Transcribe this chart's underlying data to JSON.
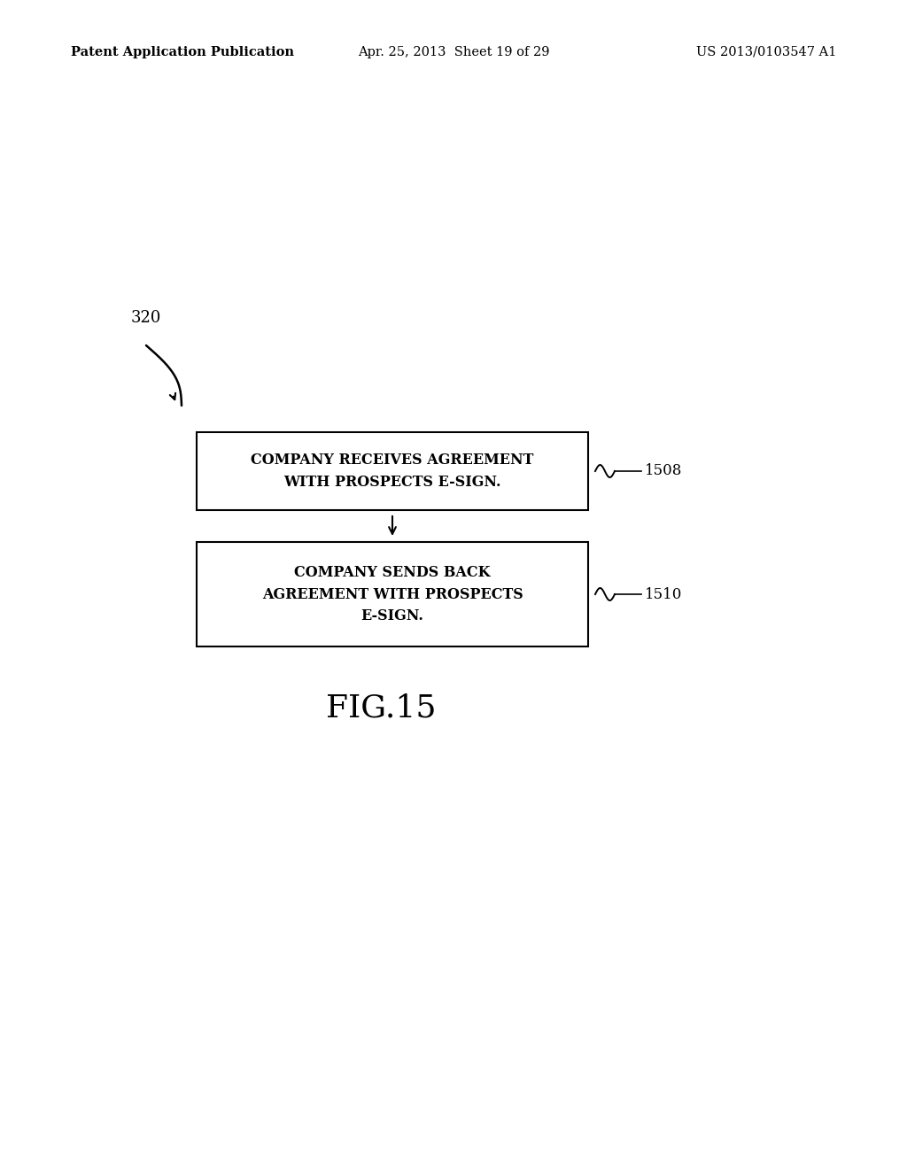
{
  "background_color": "#ffffff",
  "header_left": "Patent Application Publication",
  "header_mid": "Apr. 25, 2013  Sheet 19 of 29",
  "header_right": "US 2013/0103547 A1",
  "header_fontsize": 10.5,
  "label_320": "320",
  "box1_text_line1": "COMPANY RECEIVES AGREEMENT",
  "box1_text_line2": "WITH PROSPECTS E-SIGN.",
  "box1_label": "1508",
  "box2_text_line1": "COMPANY SENDS BACK",
  "box2_text_line2": "AGREEMENT WITH PROSPECTS",
  "box2_text_line3": "E-SIGN.",
  "box2_label": "1510",
  "fig15_text": "FIG.15",
  "text_fontsize": 11.5,
  "label_fontsize": 12,
  "fig_label_fontsize": 26
}
